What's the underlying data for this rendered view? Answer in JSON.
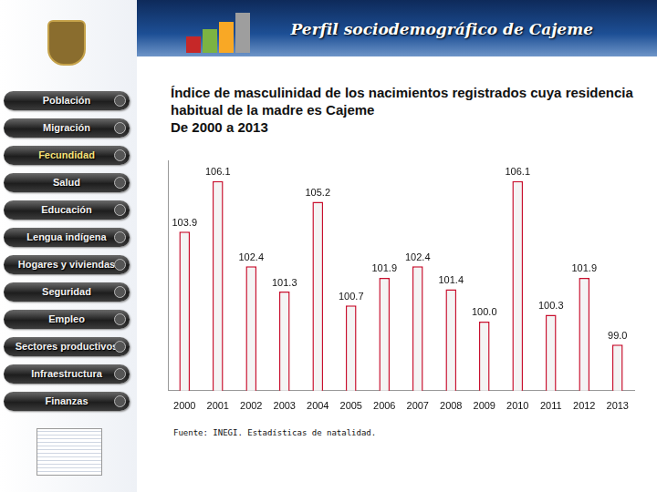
{
  "header": {
    "title": "Perfil sociodemográfico de Cajeme"
  },
  "menu": [
    "Población",
    "Migración",
    "Fecundidad",
    "Salud",
    "Educación",
    "Lengua indígena",
    "Hogares y viviendas",
    "Seguridad",
    "Empleo",
    "Sectores productivos",
    "Infraestructura",
    "Finanzas"
  ],
  "menu_active": "Fecundidad",
  "chart_data": {
    "type": "bar",
    "title": "Índice de masculinidad de los nacimientos registrados cuya residencia habitual de la madre es Cajeme",
    "subtitle": "De 2000 a 2013",
    "source": "Fuente: INEGI. Estadísticas de natalidad.",
    "categories": [
      "2000",
      "2001",
      "2002",
      "2003",
      "2004",
      "2005",
      "2006",
      "2007",
      "2008",
      "2009",
      "2010",
      "2011",
      "2012",
      "2013"
    ],
    "values": [
      103.9,
      106.1,
      102.4,
      101.3,
      105.2,
      100.7,
      101.9,
      102.4,
      101.4,
      100.0,
      106.1,
      100.3,
      101.9,
      99.0
    ],
    "value_labels": [
      "103.9",
      "106.1",
      "102.4",
      "101.3",
      "105.2",
      "100.7",
      "101.9",
      "102.4",
      "101.4",
      "100.0",
      "106.1",
      "100.3",
      "101.9",
      "99.0"
    ],
    "color": "#c8102e",
    "ylim": [
      97,
      107
    ],
    "grid": false,
    "data_labels": true,
    "tick_labels": "x"
  }
}
